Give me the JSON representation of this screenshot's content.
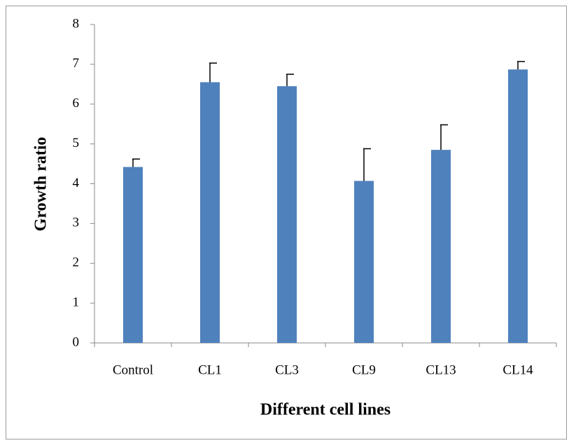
{
  "chart_data": {
    "type": "bar",
    "x_label": "Different cell lines",
    "y_label": "Growth ratio",
    "categories": [
      "Control",
      "CL1",
      "CL3",
      "CL9",
      "CL13",
      "CL14"
    ],
    "values": [
      4.42,
      6.55,
      6.45,
      4.07,
      4.85,
      6.87
    ],
    "errors": [
      0.2,
      0.48,
      0.3,
      0.81,
      0.63,
      0.2
    ],
    "color": "#4f81bd",
    "ylim": [
      0,
      8
    ],
    "yticks": [
      0,
      1,
      2,
      3,
      4,
      5,
      6,
      7,
      8
    ],
    "grid": false
  }
}
